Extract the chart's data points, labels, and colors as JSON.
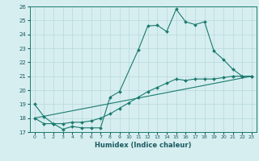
{
  "xlabel": "Humidex (Indice chaleur)",
  "xlim": [
    -0.5,
    23.5
  ],
  "ylim": [
    17,
    26
  ],
  "yticks": [
    17,
    18,
    19,
    20,
    21,
    22,
    23,
    24,
    25,
    26
  ],
  "xticks": [
    0,
    1,
    2,
    3,
    4,
    5,
    6,
    7,
    8,
    9,
    10,
    11,
    12,
    13,
    14,
    15,
    16,
    17,
    18,
    19,
    20,
    21,
    22,
    23
  ],
  "bg_color": "#d6eef0",
  "grid_color": "#b8d8dc",
  "line_color": "#1a7a6e",
  "lines": [
    {
      "x": [
        0,
        1,
        2,
        3,
        4,
        5,
        6,
        7,
        8,
        9,
        11,
        12,
        13,
        14,
        15,
        16,
        17,
        18,
        19,
        20,
        21,
        22,
        23
      ],
      "y": [
        19.0,
        18.1,
        17.6,
        17.2,
        17.4,
        17.3,
        17.3,
        17.3,
        19.5,
        19.9,
        22.9,
        24.6,
        24.65,
        24.2,
        25.8,
        24.9,
        24.7,
        24.9,
        22.8,
        22.2,
        21.5,
        21.0,
        21.0
      ]
    },
    {
      "x": [
        0,
        1,
        2,
        3,
        4,
        5,
        6,
        7,
        8,
        9,
        10,
        11,
        12,
        13,
        14,
        15,
        16,
        17,
        18,
        19,
        20,
        21,
        22,
        23
      ],
      "y": [
        18.0,
        17.6,
        17.6,
        17.6,
        17.7,
        17.7,
        17.8,
        18.0,
        18.3,
        18.7,
        19.1,
        19.5,
        19.9,
        20.2,
        20.5,
        20.8,
        20.7,
        20.8,
        20.8,
        20.8,
        20.9,
        21.0,
        21.0,
        21.0
      ]
    },
    {
      "x": [
        0,
        23
      ],
      "y": [
        18.0,
        21.0
      ]
    }
  ]
}
